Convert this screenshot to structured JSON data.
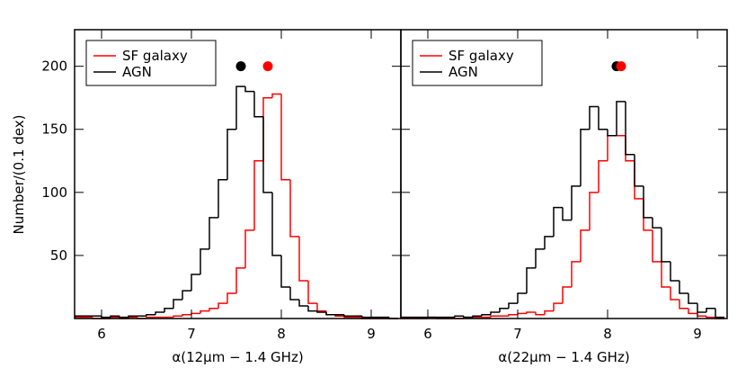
{
  "chart_data": [
    {
      "type": "histogram",
      "xlabel": "α(12μm − 1.4 GHz)",
      "ylabel": "Number/(0.1 dex)",
      "bins": [
        5.7,
        5.8,
        5.9,
        6.0,
        6.1,
        6.2,
        6.3,
        6.4,
        6.5,
        6.6,
        6.7,
        6.8,
        6.9,
        7.0,
        7.1,
        7.2,
        7.3,
        7.4,
        7.5,
        7.6,
        7.7,
        7.8,
        7.9,
        8.0,
        8.1,
        8.2,
        8.3,
        8.4,
        8.5,
        8.6,
        8.7,
        8.8,
        8.9,
        9.0,
        9.1,
        9.2,
        9.3
      ],
      "series": [
        {
          "name": "SF galaxy",
          "color": "#ff0000",
          "median": 7.85,
          "values": [
            1,
            1,
            0,
            0,
            1,
            0,
            1,
            0,
            1,
            1,
            1,
            2,
            3,
            4,
            6,
            8,
            12,
            20,
            40,
            70,
            125,
            175,
            178,
            110,
            65,
            30,
            12,
            6,
            3,
            2,
            1,
            1,
            0,
            0,
            0,
            0
          ]
        },
        {
          "name": "AGN",
          "color": "#000000",
          "median": 7.55,
          "values": [
            2,
            2,
            2,
            1,
            2,
            1,
            2,
            2,
            3,
            5,
            8,
            15,
            22,
            35,
            55,
            80,
            110,
            150,
            184,
            180,
            160,
            100,
            50,
            25,
            15,
            10,
            6,
            5,
            3,
            3,
            2,
            2,
            1,
            1,
            1,
            0
          ]
        }
      ],
      "median_y": 200,
      "xlim": [
        5.7,
        9.33
      ],
      "xticks": [
        6,
        7,
        8,
        9
      ],
      "ylim": [
        0,
        229
      ],
      "yticks": [
        50,
        100,
        150,
        200
      ],
      "ytick_labels": true,
      "legend": "upper left"
    },
    {
      "type": "histogram",
      "xlabel": "α(22μm − 1.4 GHz)",
      "bins": [
        5.7,
        5.8,
        5.9,
        6.0,
        6.1,
        6.2,
        6.3,
        6.4,
        6.5,
        6.6,
        6.7,
        6.8,
        6.9,
        7.0,
        7.1,
        7.2,
        7.3,
        7.4,
        7.5,
        7.6,
        7.7,
        7.8,
        7.9,
        8.0,
        8.1,
        8.2,
        8.3,
        8.4,
        8.5,
        8.6,
        8.7,
        8.8,
        8.9,
        9.0,
        9.1,
        9.2,
        9.3
      ],
      "series": [
        {
          "name": "SF galaxy",
          "color": "#ff0000",
          "median": 8.15,
          "values": [
            0,
            0,
            0,
            1,
            0,
            0,
            0,
            1,
            1,
            1,
            2,
            2,
            3,
            4,
            5,
            3,
            6,
            12,
            25,
            45,
            70,
            100,
            125,
            145,
            145,
            125,
            95,
            70,
            45,
            25,
            15,
            8,
            4,
            2,
            1,
            0
          ]
        },
        {
          "name": "AGN",
          "color": "#000000",
          "median": 8.1,
          "values": [
            1,
            1,
            1,
            1,
            1,
            1,
            2,
            1,
            2,
            3,
            5,
            8,
            12,
            20,
            40,
            55,
            65,
            88,
            78,
            105,
            150,
            168,
            150,
            145,
            172,
            130,
            105,
            80,
            72,
            45,
            30,
            20,
            12,
            5,
            8,
            1
          ]
        }
      ],
      "median_y": 200,
      "xlim": [
        5.7,
        9.33
      ],
      "xticks": [
        6,
        7,
        8,
        9
      ],
      "ylim": [
        0,
        229
      ],
      "yticks": [
        50,
        100,
        150,
        200
      ],
      "ytick_labels": false,
      "legend": "upper left"
    }
  ]
}
